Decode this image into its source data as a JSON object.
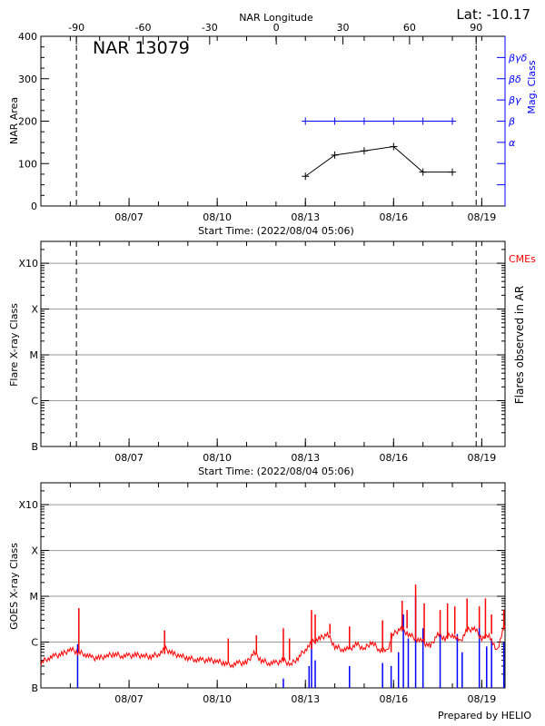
{
  "header": {
    "lat_label": "Lat: -10.17"
  },
  "chart_data": [
    {
      "type": "line",
      "panel": "nar",
      "title": "NAR 13079",
      "top_axis_label": "NAR Longitude",
      "top_ticks": [
        "-90",
        "-60",
        "-30",
        "0",
        "30",
        "60",
        "90"
      ],
      "top_tick_values": [
        -90,
        -60,
        -30,
        0,
        30,
        60,
        90
      ],
      "top_xlim": [
        -106,
        103
      ],
      "xlabel": "Start Time: (2022/08/04 05:06)",
      "xlim": [
        "2022-08-04T00:00",
        "2022-08-19T19:00"
      ],
      "x_tick_labels": [
        "08/07",
        "08/10",
        "08/13",
        "08/16",
        "08/19"
      ],
      "x_tick_dates": [
        "2022-08-07T00:00",
        "2022-08-10T00:00",
        "2022-08-13T00:00",
        "2022-08-16T00:00",
        "2022-08-19T00:00"
      ],
      "ylabel": "NAR Area",
      "ylim": [
        0,
        400
      ],
      "y_ticks": [
        "0",
        "100",
        "200",
        "300",
        "400"
      ],
      "y_tick_values": [
        0,
        100,
        200,
        300,
        400
      ],
      "right_ylabel": "Mag. Class",
      "right_ticks": [
        "",
        "",
        "α",
        "β",
        "βγ",
        "βδ",
        "βγδ"
      ],
      "right_tick_values": [
        50,
        100,
        150,
        200,
        250,
        300,
        350
      ],
      "limb_longitudes": [
        -90,
        90
      ],
      "series": [
        {
          "name": "NAR Area",
          "color": "#000000",
          "x": [
            "2022-08-13T00:00",
            "2022-08-14T00:00",
            "2022-08-15T00:00",
            "2022-08-16T00:00",
            "2022-08-17T00:00",
            "2022-08-18T00:00"
          ],
          "y": [
            70,
            120,
            130,
            140,
            80,
            80
          ]
        },
        {
          "name": "Mag. Class",
          "color": "#0000ff",
          "x": [
            "2022-08-13T00:00",
            "2022-08-14T00:00",
            "2022-08-15T00:00",
            "2022-08-16T00:00",
            "2022-08-17T00:00",
            "2022-08-18T00:00"
          ],
          "y": [
            "β",
            "β",
            "β",
            "β",
            "β",
            "β"
          ]
        }
      ]
    },
    {
      "type": "scatter",
      "panel": "flares",
      "xlabel": "Start Time: (2022/08/04 05:06)",
      "xlim": [
        "2022-08-04T00:00",
        "2022-08-19T19:00"
      ],
      "x_tick_labels": [
        "08/07",
        "08/10",
        "08/13",
        "08/16",
        "08/19"
      ],
      "ylabel": "Flare X-ray Class",
      "y_scale": "log",
      "ylim": [
        1e-07,
        0.003
      ],
      "y_ticks": [
        "B",
        "C",
        "M",
        "X",
        "X10"
      ],
      "y_tick_values": [
        1e-07,
        1e-06,
        1e-05,
        0.0001,
        0.001
      ],
      "grid": true,
      "right_ylabel": "Flares observed in AR",
      "legend": {
        "label": "CMEs",
        "color": "#ff0000",
        "placement": "top-right"
      },
      "series": []
    },
    {
      "type": "line",
      "panel": "goes",
      "xlim": [
        "2022-08-04T00:00",
        "2022-08-19T19:00"
      ],
      "x_tick_labels": [
        "08/07",
        "08/10",
        "08/13",
        "08/16",
        "08/19"
      ],
      "ylabel": "GOES X-ray Class",
      "y_scale": "log",
      "ylim": [
        1e-07,
        0.003
      ],
      "y_ticks": [
        "B",
        "C",
        "M",
        "X",
        "X10"
      ],
      "y_tick_values": [
        1e-07,
        1e-06,
        1e-05,
        0.0001,
        0.001
      ],
      "grid": true,
      "series": [
        {
          "color": "#ff0000",
          "start": "2022-08-04T00:00",
          "step_hours": 6,
          "values": [
            3.5e-07,
            4.5e-07,
            5e-07,
            5.5e-07,
            7e-07,
            6e-07,
            5.5e-07,
            4.5e-07,
            4.5e-07,
            5e-07,
            5.5e-07,
            5e-07,
            5e-07,
            5.2e-07,
            5e-07,
            4.8e-07,
            5.5e-07,
            7e-07,
            5.5e-07,
            5e-07,
            4.5e-07,
            4.2e-07,
            4e-07,
            4e-07,
            3.8e-07,
            3.5e-07,
            3.2e-07,
            3.5e-07,
            3.5e-07,
            6e-07,
            4e-07,
            3.5e-07,
            3.5e-07,
            4e-07,
            3.2e-07,
            4.5e-07,
            7e-07,
            1e-06,
            1.2e-06,
            1.5e-06,
            8e-07,
            7e-07,
            7e-07,
            9e-07,
            7e-07,
            1e-06,
            7e-07,
            6e-07,
            1.5e-06,
            2e-06,
            1.5e-06,
            1.2e-06,
            1e-06,
            8e-07,
            1.5e-06,
            1.2e-06,
            1.5e-06,
            1e-06,
            1.8e-06,
            2e-06,
            1.2e-06,
            1.5e-06,
            6e-07,
            2e-06
          ],
          "peaks": [
            [
              "2022-08-05T07:00",
              5.5e-06
            ],
            [
              "2022-08-08T05:00",
              1.8e-06
            ],
            [
              "2022-08-10T09:00",
              1.2e-06
            ],
            [
              "2022-08-11T08:00",
              1.4e-06
            ],
            [
              "2022-08-12T06:00",
              2e-06
            ],
            [
              "2022-08-12T11:00",
              1.2e-06
            ],
            [
              "2022-08-13T05:00",
              5e-06
            ],
            [
              "2022-08-13T08:00",
              4e-06
            ],
            [
              "2022-08-13T20:00",
              2.5e-06
            ],
            [
              "2022-08-14T12:00",
              2.2e-06
            ],
            [
              "2022-08-15T15:00",
              3e-06
            ],
            [
              "2022-08-15T22:00",
              1.6e-06
            ],
            [
              "2022-08-16T07:00",
              8e-06
            ],
            [
              "2022-08-16T11:00",
              5e-06
            ],
            [
              "2022-08-16T18:00",
              1.8e-05
            ],
            [
              "2022-08-17T01:00",
              7e-06
            ],
            [
              "2022-08-17T14:00",
              5e-06
            ],
            [
              "2022-08-17T20:00",
              7e-06
            ],
            [
              "2022-08-18T02:00",
              6e-06
            ],
            [
              "2022-08-18T12:00",
              9e-06
            ],
            [
              "2022-08-18T22:00",
              6e-06
            ],
            [
              "2022-08-19T03:00",
              9e-06
            ],
            [
              "2022-08-19T08:00",
              4e-06
            ],
            [
              "2022-08-19T18:00",
              5e-06
            ]
          ]
        },
        {
          "color": "#0000ff",
          "peaks": [
            [
              "2022-08-05T06:00",
              9e-07
            ],
            [
              "2022-08-12T06:00",
              1.6e-07
            ],
            [
              "2022-08-13T03:00",
              3e-07
            ],
            [
              "2022-08-13T05:00",
              1e-06
            ],
            [
              "2022-08-13T08:00",
              4e-07
            ],
            [
              "2022-08-14T12:00",
              3e-07
            ],
            [
              "2022-08-15T15:00",
              3.5e-07
            ],
            [
              "2022-08-15T22:00",
              3e-07
            ],
            [
              "2022-08-16T04:00",
              6e-07
            ],
            [
              "2022-08-16T08:00",
              4e-06
            ],
            [
              "2022-08-16T12:00",
              1.2e-06
            ],
            [
              "2022-08-16T18:00",
              1e-05
            ],
            [
              "2022-08-17T00:00",
              2e-06
            ],
            [
              "2022-08-17T14:00",
              1.5e-06
            ],
            [
              "2022-08-18T04:00",
              1.5e-06
            ],
            [
              "2022-08-18T08:00",
              6e-07
            ],
            [
              "2022-08-18T22:00",
              2.5e-06
            ],
            [
              "2022-08-19T04:00",
              8e-07
            ],
            [
              "2022-08-19T08:00",
              1.2e-06
            ],
            [
              "2022-08-19T18:00",
              1e-06
            ]
          ]
        }
      ]
    }
  ],
  "footer": {
    "credit": "Prepared by HELIO"
  }
}
